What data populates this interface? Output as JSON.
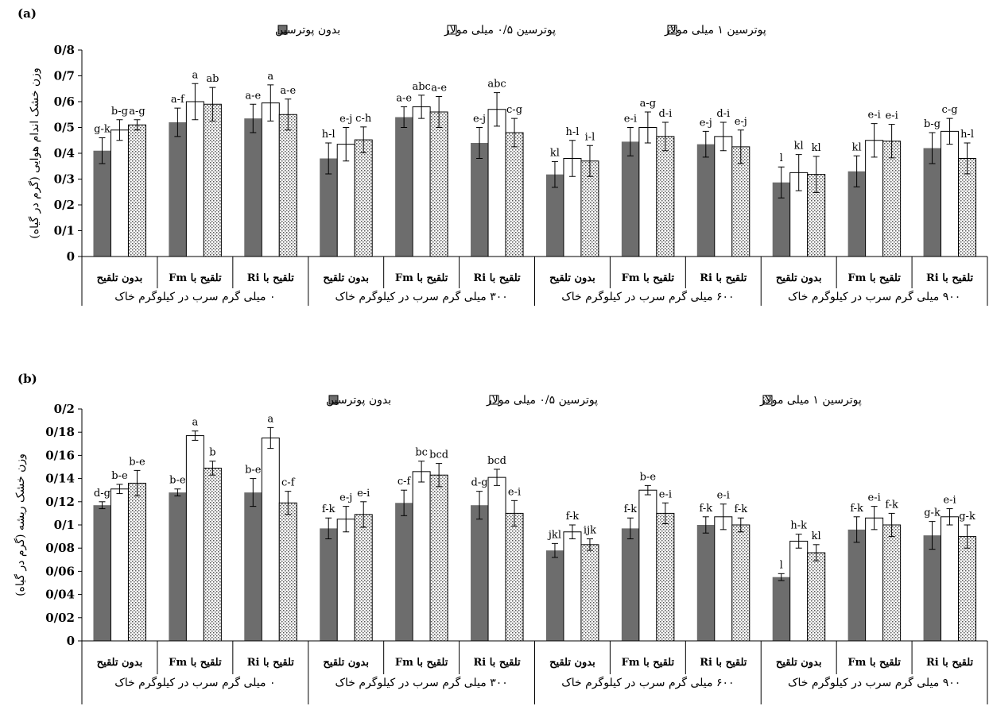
{
  "legend_entries": [
    "بدون پوترسین",
    "پوترسین ۰/۵ میلی مولار",
    "پوترسین ۱ میلی مولار"
  ],
  "group_labels": [
    "بدون تلقیح",
    "تلقیح با Fm",
    "تلقیح با Ri"
  ],
  "lead_labels": [
    "۰ میلی گرم سرب در کیلوگرم خاک",
    "۳۰۰ میلی گرم سرب در کیلوگرم خاک",
    "۶۰۰ میلی گرم سرب در کیلوگرم خاک",
    "۹۰۰ میلی گرم سرب در کیلوگرم خاک"
  ],
  "colors": {
    "series1": "#6d6d6d",
    "series2": "#ffffff",
    "series3": "#e6e6e6",
    "axis": "#000000"
  },
  "chart_data": [
    {
      "type": "bar",
      "panel_label": "(a)",
      "ylabel": "وزن خشک اندام هوایی (گرم در گیاه)",
      "ylim": [
        0,
        0.8
      ],
      "ytick_values": [
        0,
        0.1,
        0.2,
        0.3,
        0.4,
        0.5,
        0.6,
        0.7,
        0.8
      ],
      "ytick_labels": [
        "0",
        "0/1",
        "0/2",
        "0/3",
        "0/4",
        "0/5",
        "0/6",
        "0/7",
        "0/8"
      ],
      "legend_placement": "top",
      "grid": false,
      "series": [
        {
          "name": "بدون پوترسین",
          "values": [
            0.41,
            0.52,
            0.535,
            0.38,
            0.54,
            0.44,
            0.318,
            0.445,
            0.435,
            0.287,
            0.33,
            0.42
          ],
          "errors": [
            0.05,
            0.055,
            0.055,
            0.06,
            0.04,
            0.06,
            0.05,
            0.055,
            0.05,
            0.06,
            0.06,
            0.06
          ],
          "letters": [
            "g-k",
            "a-f",
            "a-e",
            "h-l",
            "a-e",
            "e-j",
            "kl",
            "e-i",
            "e-j",
            "l",
            "kl",
            "b-g"
          ]
        },
        {
          "name": "پوترسین ۰/۵ میلی مولار",
          "values": [
            0.49,
            0.6,
            0.595,
            0.435,
            0.58,
            0.57,
            0.38,
            0.5,
            0.465,
            0.325,
            0.45,
            0.485
          ],
          "errors": [
            0.04,
            0.07,
            0.07,
            0.065,
            0.045,
            0.065,
            0.07,
            0.06,
            0.055,
            0.07,
            0.065,
            0.05
          ],
          "letters": [
            "b-g",
            "a",
            "a",
            "e-j",
            "abc",
            "abc",
            "h-l",
            "a-g",
            "d-i",
            "kl",
            "e-i",
            "c-g"
          ]
        },
        {
          "name": "پوترسین ۱ میلی مولار",
          "values": [
            0.51,
            0.59,
            0.55,
            0.452,
            0.56,
            0.48,
            0.37,
            0.465,
            0.425,
            0.318,
            0.447,
            0.38
          ],
          "errors": [
            0.02,
            0.065,
            0.06,
            0.05,
            0.06,
            0.055,
            0.06,
            0.055,
            0.065,
            0.07,
            0.065,
            0.06
          ],
          "letters": [
            "a-g",
            "ab",
            "a-e",
            "c-h",
            "a-e",
            "c-g",
            "i-l",
            "d-i",
            "e-j",
            "kl",
            "e-i",
            "h-l"
          ]
        }
      ]
    },
    {
      "type": "bar",
      "panel_label": "(b)",
      "ylabel": "وزن خشک ریشه (گرم در گیاه)",
      "ylim": [
        0,
        0.2
      ],
      "ytick_values": [
        0,
        0.02,
        0.04,
        0.06,
        0.08,
        0.1,
        0.12,
        0.14,
        0.16,
        0.18,
        0.2
      ],
      "ytick_labels": [
        "0",
        "0/02",
        "0/04",
        "0/06",
        "0/08",
        "0/1",
        "0/12",
        "0/14",
        "0/16",
        "0/18",
        "0/2"
      ],
      "legend_placement": "top",
      "grid": false,
      "series": [
        {
          "name": "بدون پوترسین",
          "values": [
            0.117,
            0.128,
            0.128,
            0.097,
            0.119,
            0.117,
            0.078,
            0.097,
            0.1,
            0.055,
            0.096,
            0.091
          ],
          "errors": [
            0.003,
            0.003,
            0.012,
            0.009,
            0.011,
            0.012,
            0.006,
            0.009,
            0.007,
            0.003,
            0.011,
            0.012
          ],
          "letters": [
            "d-g",
            "b-e",
            "b-e",
            "f-k",
            "c-f",
            "d-g",
            "jkl",
            "f-k",
            "f-k",
            "l",
            "f-k",
            "g-k"
          ]
        },
        {
          "name": "پوترسین ۰/۵ میلی مولار",
          "values": [
            0.131,
            0.177,
            0.175,
            0.105,
            0.146,
            0.141,
            0.094,
            0.13,
            0.107,
            0.086,
            0.106,
            0.107
          ],
          "errors": [
            0.004,
            0.004,
            0.009,
            0.011,
            0.009,
            0.007,
            0.006,
            0.004,
            0.011,
            0.006,
            0.01,
            0.007
          ],
          "letters": [
            "b-e",
            "a",
            "a",
            "e-j",
            "bc",
            "bcd",
            "f-k",
            "b-e",
            "e-i",
            "h-k",
            "e-i",
            "e-i"
          ]
        },
        {
          "name": "پوترسین ۱ میلی مولار",
          "values": [
            0.136,
            0.149,
            0.119,
            0.109,
            0.143,
            0.11,
            0.083,
            0.11,
            0.1,
            0.076,
            0.1,
            0.09
          ],
          "errors": [
            0.011,
            0.006,
            0.01,
            0.011,
            0.01,
            0.011,
            0.005,
            0.009,
            0.006,
            0.007,
            0.01,
            0.01
          ],
          "letters": [
            "b-e",
            "b",
            "c-f",
            "e-i",
            "bcd",
            "e-i",
            "ijk",
            "e-i",
            "f-k",
            "kl",
            "f-k",
            "g-k"
          ]
        }
      ]
    }
  ]
}
